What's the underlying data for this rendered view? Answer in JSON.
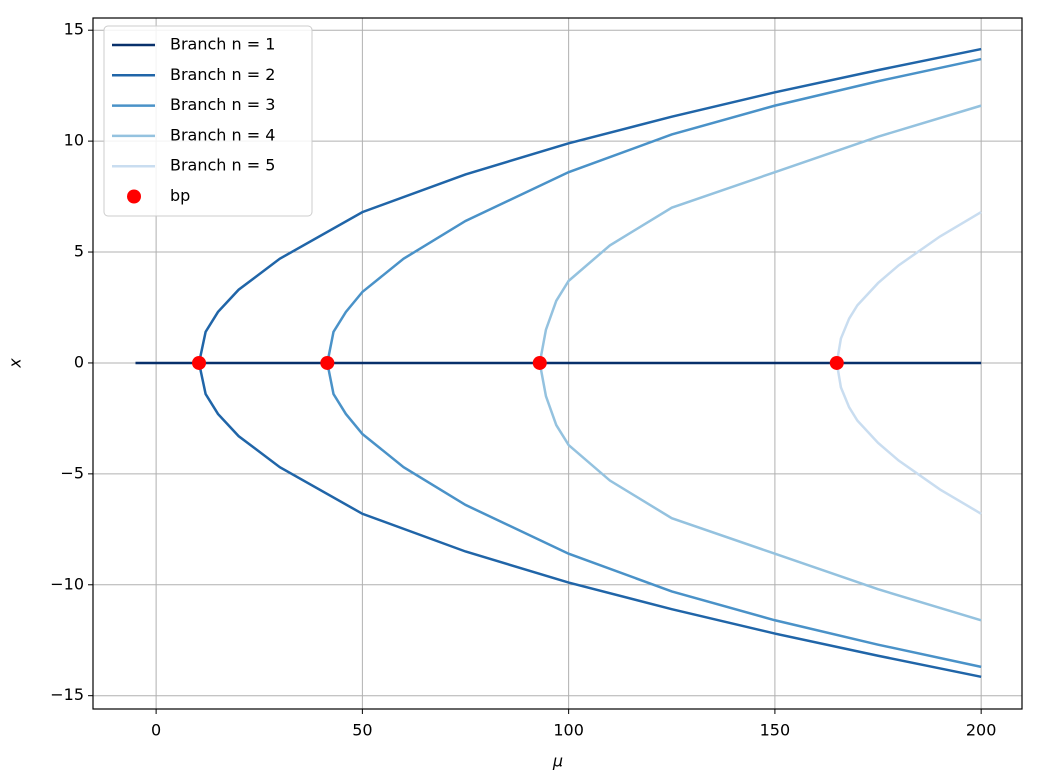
{
  "chart_data": {
    "type": "line",
    "x_label": "μ",
    "y_label": "x",
    "xlim": [
      -15.3,
      209.9
    ],
    "ylim": [
      -15.6,
      15.55
    ],
    "xticks": [
      0,
      50,
      100,
      150,
      200
    ],
    "yticks": [
      {
        "value": -15,
        "label": "−15"
      },
      {
        "value": -10,
        "label": "−10"
      },
      {
        "value": -5,
        "label": "−5"
      },
      0,
      5,
      10,
      15
    ],
    "grid": true,
    "legend": "upper left",
    "series": [
      {
        "name": "Branch n = 1",
        "color": "#08306b",
        "x": [
          -5,
          200
        ],
        "values": [
          0,
          0
        ]
      },
      {
        "name": "Branch n = 2",
        "color": "#2065a8",
        "x": [
          200,
          175,
          150,
          125,
          100,
          75,
          50,
          30,
          20,
          15,
          12,
          10.4,
          12,
          15,
          20,
          30,
          50,
          75,
          100,
          125,
          150,
          175,
          200
        ],
        "values": [
          -14.15,
          -13.2,
          -12.2,
          -11.1,
          -9.9,
          -8.5,
          -6.8,
          -4.7,
          -3.3,
          -2.3,
          -1.4,
          0,
          1.4,
          2.3,
          3.3,
          4.7,
          6.8,
          8.5,
          9.9,
          11.1,
          12.2,
          13.2,
          14.15
        ]
      },
      {
        "name": "Branch n = 3",
        "color": "#4a92c8",
        "x": [
          200,
          175,
          150,
          125,
          100,
          75,
          60,
          50,
          46,
          43,
          41.5,
          43,
          46,
          50,
          60,
          75,
          100,
          125,
          150,
          175,
          200
        ],
        "values": [
          -13.7,
          -12.7,
          -11.6,
          -10.3,
          -8.6,
          -6.4,
          -4.7,
          -3.2,
          -2.3,
          -1.4,
          0,
          1.4,
          2.3,
          3.2,
          4.7,
          6.4,
          8.6,
          10.3,
          11.6,
          12.7,
          13.7
        ]
      },
      {
        "name": "Branch n = 4",
        "color": "#94c2df",
        "x": [
          200,
          175,
          150,
          125,
          110,
          100,
          97,
          94.5,
          93,
          94.5,
          97,
          100,
          110,
          125,
          150,
          175,
          200
        ],
        "values": [
          -11.6,
          -10.2,
          -8.6,
          -7.0,
          -5.3,
          -3.7,
          -2.8,
          -1.5,
          0,
          1.5,
          2.8,
          3.7,
          5.3,
          7.0,
          8.6,
          10.2,
          11.6
        ]
      },
      {
        "name": "Branch n = 5",
        "color": "#c9ddf0",
        "x": [
          200,
          190,
          180,
          175,
          170,
          168,
          166,
          165,
          166,
          168,
          170,
          175,
          180,
          190,
          200
        ],
        "values": [
          -6.8,
          -5.7,
          -4.4,
          -3.6,
          -2.6,
          -2.0,
          -1.1,
          0,
          1.1,
          2.0,
          2.6,
          3.6,
          4.4,
          5.7,
          6.8
        ]
      },
      {
        "name": "bp",
        "color": "#ff0000",
        "marker": "o",
        "x": [
          10.4,
          41.5,
          93,
          165
        ],
        "values": [
          0,
          0,
          0,
          0
        ]
      }
    ]
  }
}
